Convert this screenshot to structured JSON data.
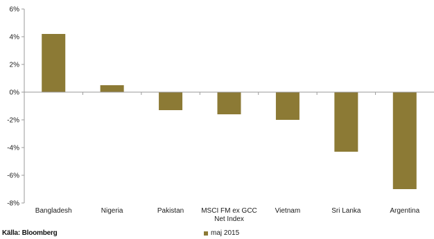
{
  "chart_data": {
    "type": "bar",
    "categories": [
      "Bangladesh",
      "Nigeria",
      "Pakistan",
      "MSCI FM ex GCC Net Index",
      "Vietnam",
      "Sri Lanka",
      "Argentina"
    ],
    "category_lines": [
      [
        "Bangladesh"
      ],
      [
        "Nigeria"
      ],
      [
        "Pakistan"
      ],
      [
        "MSCI FM ex GCC",
        "Net Index"
      ],
      [
        "Vietnam"
      ],
      [
        "Sri Lanka"
      ],
      [
        "Argentina"
      ]
    ],
    "series": [
      {
        "name": "maj 2015",
        "values": [
          4.2,
          0.5,
          -1.3,
          -1.6,
          -2.0,
          -4.3,
          -7.0
        ]
      }
    ],
    "ylim": [
      -8,
      6
    ],
    "yticks": [
      6,
      4,
      2,
      0,
      -2,
      -4,
      -6,
      -8
    ],
    "ytick_labels": [
      "6%",
      "4%",
      "2%",
      "0%",
      "-2%",
      "-4%",
      "-6%",
      "-8%"
    ],
    "grid": false,
    "legend": "bottom-center",
    "bar_color": "#8c7a35",
    "axis_color": "#9a9a9a"
  },
  "footer": {
    "source": "Källa: Bloomberg"
  },
  "legend": {
    "label": "maj 2015"
  }
}
